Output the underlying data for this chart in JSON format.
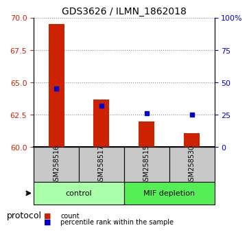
{
  "title": "GDS3626 / ILMN_1862018",
  "samples": [
    "GSM258516",
    "GSM258517",
    "GSM258515",
    "GSM258530"
  ],
  "count_values": [
    69.5,
    63.7,
    62.0,
    61.1
  ],
  "percentile_values": [
    64.2,
    63.3,
    62.8,
    62.5
  ],
  "percentile_ranks": [
    45,
    32,
    26,
    25
  ],
  "ylim_left": [
    60,
    70
  ],
  "ylim_right": [
    0,
    100
  ],
  "yticks_left": [
    60,
    62.5,
    65,
    67.5,
    70
  ],
  "yticks_right": [
    0,
    25,
    50,
    75,
    100
  ],
  "ytick_labels_right": [
    "0",
    "25",
    "50",
    "75",
    "100%"
  ],
  "bar_color": "#cc2200",
  "dot_color": "#0000cc",
  "bar_bottom": 60,
  "groups": [
    {
      "label": "control",
      "samples": [
        0,
        1
      ],
      "color": "#aaffaa"
    },
    {
      "label": "MIF depletion",
      "samples": [
        2,
        3
      ],
      "color": "#55ee55"
    }
  ],
  "protocol_label": "protocol",
  "bg_color_samples": "#c8c8c8",
  "grid_color": "#888888"
}
